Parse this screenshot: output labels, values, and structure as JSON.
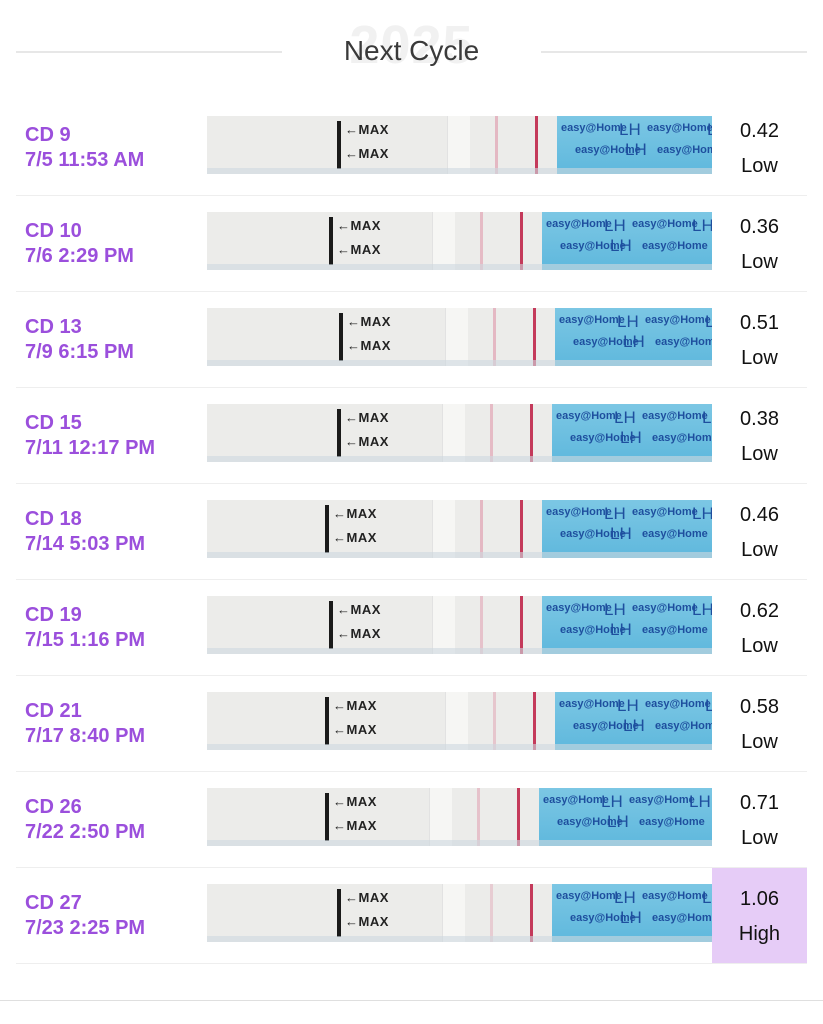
{
  "header": {
    "title": "Next Cycle",
    "watermark": "2025"
  },
  "readings": [
    {
      "day": "CD 9",
      "datetime": "7/5 11:53 AM",
      "value": "0.42",
      "level": "Low",
      "high": false,
      "test_line_intensity": 0.75
    },
    {
      "day": "CD 10",
      "datetime": "7/6 2:29 PM",
      "value": "0.36",
      "level": "Low",
      "high": false,
      "test_line_intensity": 0.7
    },
    {
      "day": "CD 13",
      "datetime": "7/9 6:15 PM",
      "value": "0.51",
      "level": "Low",
      "high": false,
      "test_line_intensity": 0.75
    },
    {
      "day": "CD 15",
      "datetime": "7/11 12:17 PM",
      "value": "0.38",
      "level": "Low",
      "high": false,
      "test_line_intensity": 0.7
    },
    {
      "day": "CD 18",
      "datetime": "7/14 5:03 PM",
      "value": "0.46",
      "level": "Low",
      "high": false,
      "test_line_intensity": 0.75
    },
    {
      "day": "CD 19",
      "datetime": "7/15 1:16 PM",
      "value": "0.62",
      "level": "Low",
      "high": false,
      "test_line_intensity": 0.6
    },
    {
      "day": "CD 21",
      "datetime": "7/17 8:40 PM",
      "value": "0.58",
      "level": "Low",
      "high": false,
      "test_line_intensity": 0.55
    },
    {
      "day": "CD 26",
      "datetime": "7/22 2:50 PM",
      "value": "0.71",
      "level": "Low",
      "high": false,
      "test_line_intensity": 0.6
    },
    {
      "day": "CD 27",
      "datetime": "7/23 2:25 PM",
      "value": "1.06",
      "level": "High",
      "high": true,
      "test_line_intensity": 0.45
    }
  ],
  "strip_labels": {
    "max_label": "←MAX",
    "brand": "easy@Home",
    "hormone": "LH"
  },
  "colors": {
    "accent_purple": "#9b4fdc",
    "high_highlight": "#e6ccf7",
    "test_line": "#c43a5b",
    "strip_tape": "#5fb8dd"
  }
}
